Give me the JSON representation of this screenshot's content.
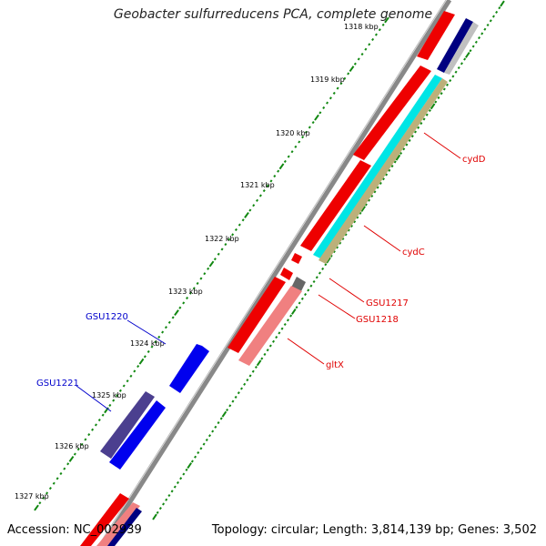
{
  "title": "Geobacter sulfurreducens PCA, complete genome",
  "footer": {
    "accession": "Accession: NC_002939",
    "summary": "Topology: circular; Length: 3,814,139 bp; Genes: 3,502"
  },
  "ruler": {
    "ticks": [
      {
        "label": "1318 kbp"
      },
      {
        "label": "1319 kbp"
      },
      {
        "label": "1320 kbp"
      },
      {
        "label": "1321 kbp"
      },
      {
        "label": "1322 kbp"
      },
      {
        "label": "1323 kbp"
      },
      {
        "label": "1324 kbp"
      },
      {
        "label": "1325 kbp"
      },
      {
        "label": "1326 kbp"
      },
      {
        "label": "1327 kbp"
      }
    ]
  },
  "gene_labels": [
    {
      "name": "cydD",
      "color": "#e00000"
    },
    {
      "name": "cydC",
      "color": "#e00000"
    },
    {
      "name": "GSU1217",
      "color": "#e00000"
    },
    {
      "name": "GSU1218",
      "color": "#e00000"
    },
    {
      "name": "gltX",
      "color": "#e00000"
    },
    {
      "name": "GSU1220",
      "color": "#0000cc"
    },
    {
      "name": "GSU1221",
      "color": "#0000cc"
    }
  ],
  "colors": {
    "forward_gene": "#ee0000",
    "reverse_gene": "#0000ee",
    "backbone": "#888888",
    "ruler_dots": "#118811",
    "cyan_feature": "#00e5e5",
    "tan_feature": "#bcb07a",
    "navy_feature": "#000080",
    "pink_feature": "#f08080",
    "slate_feature": "#4b3f8f"
  }
}
